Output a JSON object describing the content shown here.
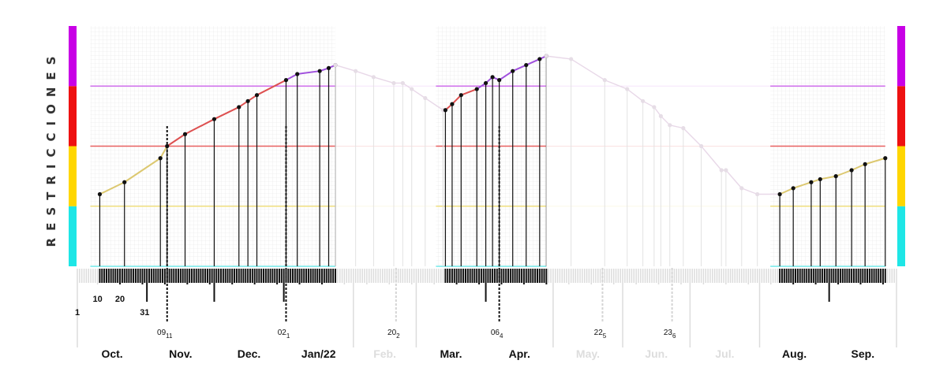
{
  "chart_data": {
    "type": "line",
    "ylabel": "RESTRICCIONES",
    "level_colors": [
      "#1ee6e6",
      "#ffd600",
      "#ee1111",
      "#c800e6"
    ],
    "level_line_colors": [
      "#70e8e8",
      "#f0e080",
      "#e86060",
      "#d070ee"
    ],
    "series_colors": {
      "yellow": "#dcc870",
      "red": "#dd5050",
      "purple": "#a050dd",
      "faded": "#e8d8e8"
    },
    "y_levels": 4,
    "day_ticks": [
      "1",
      "10",
      "20",
      "31"
    ],
    "months": [
      {
        "label": "Oct.",
        "faded": false
      },
      {
        "label": "Nov.",
        "faded": false
      },
      {
        "label": "Dec.",
        "faded": false
      },
      {
        "label": "Jan/22",
        "faded": false
      },
      {
        "label": "Feb.",
        "faded": true
      },
      {
        "label": "Mar.",
        "faded": false
      },
      {
        "label": "Apr.",
        "faded": false
      },
      {
        "label": "May.",
        "faded": true
      },
      {
        "label": "Jun.",
        "faded": true
      },
      {
        "label": "Jul.",
        "faded": true
      },
      {
        "label": "Aug.",
        "faded": false
      },
      {
        "label": "Sep.",
        "faded": false
      }
    ],
    "annotations": [
      {
        "day": 40,
        "text": "09",
        "sub": "11",
        "faded": false
      },
      {
        "day": 93,
        "text": "02",
        "sub": "1",
        "faded": false
      },
      {
        "day": 142,
        "text": "20",
        "sub": "2",
        "faded": true
      },
      {
        "day": 188,
        "text": "06",
        "sub": "4",
        "faded": false
      },
      {
        "day": 234,
        "text": "22",
        "sub": "5",
        "faded": true
      },
      {
        "day": 265,
        "text": "23",
        "sub": "6",
        "faded": true
      }
    ],
    "segments": [
      {
        "faded": false,
        "points": [
          [
            10,
            1.2
          ],
          [
            21,
            1.4
          ],
          [
            37,
            1.8
          ],
          [
            40,
            2.0
          ],
          [
            48,
            2.2
          ],
          [
            61,
            2.45
          ],
          [
            72,
            2.65
          ],
          [
            76,
            2.75
          ],
          [
            80,
            2.85
          ],
          [
            93,
            3.1
          ],
          [
            98,
            3.2
          ],
          [
            108,
            3.25
          ],
          [
            112,
            3.3
          ],
          [
            115,
            3.35
          ]
        ]
      },
      {
        "faded": true,
        "points": [
          [
            115,
            3.35
          ],
          [
            124,
            3.25
          ],
          [
            132,
            3.15
          ],
          [
            141,
            3.05
          ],
          [
            145,
            3.05
          ],
          [
            149,
            2.95
          ],
          [
            155,
            2.8
          ],
          [
            163,
            2.6
          ]
        ]
      },
      {
        "faded": false,
        "points": [
          [
            164,
            2.6
          ],
          [
            167,
            2.7
          ],
          [
            171,
            2.85
          ],
          [
            178,
            2.95
          ],
          [
            182,
            3.05
          ],
          [
            185,
            3.15
          ],
          [
            188,
            3.1
          ],
          [
            194,
            3.25
          ],
          [
            200,
            3.35
          ],
          [
            206,
            3.45
          ],
          [
            209,
            3.5
          ]
        ]
      },
      {
        "faded": true,
        "points": [
          [
            209,
            3.5
          ],
          [
            220,
            3.45
          ],
          [
            235,
            3.1
          ],
          [
            245,
            2.95
          ],
          [
            252,
            2.75
          ],
          [
            257,
            2.65
          ],
          [
            260,
            2.5
          ],
          [
            264,
            2.35
          ],
          [
            270,
            2.3
          ],
          [
            278,
            2.0
          ],
          [
            287,
            1.6
          ],
          [
            289,
            1.6
          ],
          [
            296,
            1.3
          ],
          [
            303,
            1.2
          ],
          [
            313,
            1.2
          ]
        ]
      },
      {
        "faded": false,
        "points": [
          [
            313,
            1.2
          ],
          [
            319,
            1.3
          ],
          [
            327,
            1.4
          ],
          [
            331,
            1.45
          ],
          [
            338,
            1.5
          ],
          [
            345,
            1.6
          ],
          [
            351,
            1.7
          ],
          [
            360,
            1.8
          ]
        ]
      }
    ]
  }
}
